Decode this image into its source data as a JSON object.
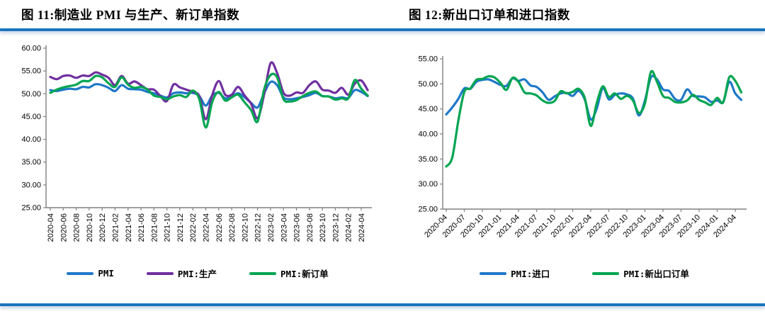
{
  "page": {
    "rule_color": "#1B75BC",
    "axis_color": "#808080",
    "text_color": "#000000"
  },
  "figures": [
    {
      "title": "图 11:制造业 PMI 与生产、新订单指数"
    },
    {
      "title": "图 12:新出口订单和进口指数"
    }
  ],
  "chart_data": [
    {
      "type": "line",
      "title": "制造业PMI与生产、新订单指数",
      "legend_position": "bottom",
      "grid": false,
      "ylim": [
        25,
        60
      ],
      "y_tick_labels": [
        "25.00",
        "30.00",
        "35.00",
        "40.00",
        "45.00",
        "50.00",
        "55.00",
        "60.00"
      ],
      "x_label_rotation": -90,
      "x_tick_step_months": 2,
      "x_tick_labels": [
        "2020-04",
        "2020-06",
        "2020-08",
        "2020-10",
        "2020-12",
        "2021-02",
        "2021-04",
        "2021-06",
        "2021-08",
        "2021-10",
        "2021-12",
        "2022-02",
        "2022-04",
        "2022-06",
        "2022-08",
        "2022-10",
        "2022-12",
        "2023-02",
        "2023-04",
        "2023-06",
        "2023-08",
        "2023-10",
        "2023-12",
        "2024-02",
        "2024-04"
      ],
      "x": [
        "2020-04",
        "2020-05",
        "2020-06",
        "2020-07",
        "2020-08",
        "2020-09",
        "2020-10",
        "2020-11",
        "2020-12",
        "2021-01",
        "2021-02",
        "2021-03",
        "2021-04",
        "2021-05",
        "2021-06",
        "2021-07",
        "2021-08",
        "2021-09",
        "2021-10",
        "2021-11",
        "2021-12",
        "2022-01",
        "2022-02",
        "2022-03",
        "2022-04",
        "2022-05",
        "2022-06",
        "2022-07",
        "2022-08",
        "2022-09",
        "2022-10",
        "2022-11",
        "2022-12",
        "2023-01",
        "2023-02",
        "2023-03",
        "2023-04",
        "2023-05",
        "2023-06",
        "2023-07",
        "2023-08",
        "2023-09",
        "2023-10",
        "2023-11",
        "2023-12",
        "2024-01",
        "2024-02",
        "2024-03",
        "2024-04",
        "2024-05"
      ],
      "series": [
        {
          "name": "PMI",
          "color": "#1E78C8",
          "values": [
            50.8,
            50.6,
            50.9,
            51.1,
            51.0,
            51.5,
            51.4,
            52.1,
            51.9,
            51.3,
            50.6,
            51.9,
            51.1,
            51.0,
            50.9,
            50.4,
            50.1,
            49.6,
            49.2,
            50.1,
            50.3,
            50.1,
            50.2,
            49.5,
            47.4,
            49.6,
            50.2,
            49.0,
            49.4,
            50.1,
            49.2,
            48.0,
            47.0,
            50.1,
            52.6,
            51.9,
            49.2,
            48.8,
            49.0,
            49.3,
            49.7,
            50.2,
            49.5,
            49.4,
            49.0,
            49.2,
            49.1,
            50.8,
            50.4,
            49.5
          ]
        },
        {
          "name": "PMI:生产",
          "color": "#7030A0",
          "values": [
            53.7,
            53.2,
            53.9,
            54.0,
            53.5,
            54.0,
            53.9,
            54.7,
            54.2,
            53.5,
            51.9,
            53.9,
            52.2,
            52.7,
            51.9,
            51.0,
            50.9,
            49.5,
            48.4,
            52.0,
            51.4,
            50.9,
            50.4,
            49.5,
            44.4,
            49.7,
            52.8,
            49.8,
            49.8,
            51.5,
            49.6,
            47.8,
            44.6,
            49.8,
            56.7,
            54.6,
            50.2,
            49.6,
            50.3,
            50.2,
            51.9,
            52.7,
            50.9,
            50.7,
            50.2,
            51.3,
            49.8,
            52.2,
            52.9,
            50.8
          ]
        },
        {
          "name": "PMI:新订单",
          "color": "#00A551",
          "values": [
            50.2,
            50.9,
            51.4,
            51.7,
            52.0,
            52.8,
            52.8,
            53.9,
            53.6,
            52.3,
            51.5,
            53.6,
            52.0,
            51.3,
            51.5,
            50.9,
            49.6,
            49.3,
            48.8,
            49.4,
            49.7,
            49.3,
            50.7,
            48.8,
            42.6,
            48.2,
            50.4,
            48.5,
            49.2,
            49.8,
            48.1,
            46.4,
            43.9,
            50.9,
            54.1,
            53.6,
            48.8,
            48.3,
            48.6,
            49.5,
            50.2,
            50.5,
            49.5,
            49.4,
            48.7,
            49.0,
            49.0,
            53.0,
            51.1,
            49.6
          ]
        }
      ]
    },
    {
      "type": "line",
      "title": "新出口订单和进口指数",
      "legend_position": "bottom",
      "grid": false,
      "ylim": [
        25,
        55
      ],
      "y_tick_labels": [
        "25.00",
        "30.00",
        "35.00",
        "40.00",
        "45.00",
        "50.00",
        "55.00"
      ],
      "x_label_rotation": -45,
      "x_tick_step_months": 3,
      "x_tick_labels": [
        "2020-04",
        "2020-07",
        "2020-10",
        "2021-01",
        "2021-04",
        "2021-07",
        "2021-10",
        "2022-01",
        "2022-04",
        "2022-07",
        "2022-10",
        "2023-01",
        "2023-04",
        "2023-07",
        "2023-10",
        "2024-01",
        "2024-04"
      ],
      "x": [
        "2020-04",
        "2020-05",
        "2020-06",
        "2020-07",
        "2020-08",
        "2020-09",
        "2020-10",
        "2020-11",
        "2020-12",
        "2021-01",
        "2021-02",
        "2021-03",
        "2021-04",
        "2021-05",
        "2021-06",
        "2021-07",
        "2021-08",
        "2021-09",
        "2021-10",
        "2021-11",
        "2021-12",
        "2022-01",
        "2022-02",
        "2022-03",
        "2022-04",
        "2022-05",
        "2022-06",
        "2022-07",
        "2022-08",
        "2022-09",
        "2022-10",
        "2022-11",
        "2022-12",
        "2023-01",
        "2023-02",
        "2023-03",
        "2023-04",
        "2023-05",
        "2023-06",
        "2023-07",
        "2023-08",
        "2023-09",
        "2023-10",
        "2023-11",
        "2023-12",
        "2024-01",
        "2024-02",
        "2024-03",
        "2024-04",
        "2024-05"
      ],
      "series": [
        {
          "name": "PMI:进口",
          "color": "#1E78C8",
          "values": [
            43.9,
            45.3,
            47.0,
            49.1,
            49.0,
            50.4,
            50.8,
            50.9,
            50.4,
            49.8,
            49.6,
            51.1,
            50.6,
            50.9,
            49.7,
            49.4,
            48.3,
            46.8,
            47.5,
            48.1,
            48.2,
            47.6,
            48.6,
            46.9,
            42.9,
            45.1,
            49.2,
            46.9,
            47.8,
            48.1,
            47.9,
            47.1,
            43.7,
            46.7,
            51.3,
            50.9,
            48.9,
            48.6,
            47.0,
            46.8,
            48.9,
            47.6,
            47.5,
            47.3,
            46.4,
            46.7,
            46.4,
            50.4,
            48.1,
            46.8
          ]
        },
        {
          "name": "PMI:新出口订单",
          "color": "#00A551",
          "values": [
            33.5,
            35.3,
            42.6,
            48.4,
            49.1,
            50.8,
            51.0,
            51.5,
            51.3,
            50.2,
            48.8,
            51.2,
            50.4,
            48.3,
            48.1,
            47.7,
            46.7,
            46.2,
            46.6,
            48.5,
            48.1,
            48.4,
            49.0,
            47.2,
            41.6,
            46.2,
            49.5,
            47.4,
            48.1,
            47.0,
            47.6,
            46.7,
            44.2,
            46.1,
            52.4,
            50.4,
            47.6,
            47.2,
            46.4,
            46.3,
            46.7,
            47.8,
            46.8,
            46.3,
            45.8,
            47.2,
            46.3,
            51.3,
            50.6,
            48.3
          ]
        }
      ]
    }
  ]
}
